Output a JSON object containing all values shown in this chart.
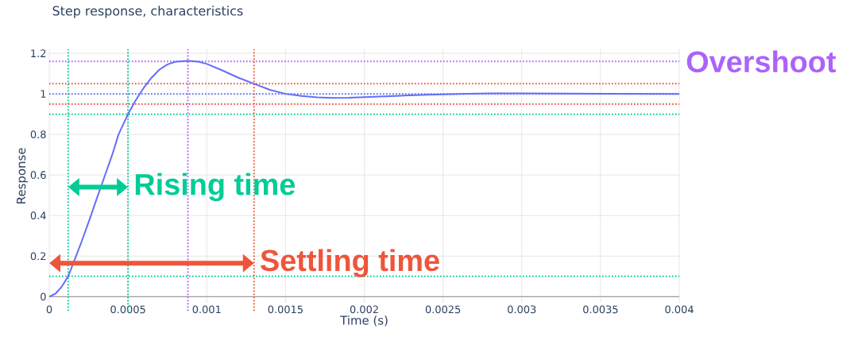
{
  "chart_data": {
    "type": "line",
    "title": "Step response, characteristics",
    "xlabel": "Time (s)",
    "ylabel": "Response",
    "xlim": [
      0,
      0.004
    ],
    "ylim": [
      -0.03,
      1.22
    ],
    "xticks": [
      0,
      0.0005,
      0.001,
      0.0015,
      0.002,
      0.0025,
      0.003,
      0.0035,
      0.004
    ],
    "yticks": [
      0,
      0.2,
      0.4,
      0.6,
      0.8,
      1,
      1.2
    ],
    "grid": true,
    "marker": "none",
    "line_style": "solid",
    "series": [
      {
        "color": "#636efa",
        "x": [
          0,
          4e-05,
          8e-05,
          0.00012,
          0.00016,
          0.0002,
          0.00026,
          0.0003,
          0.00035,
          0.0004,
          0.00044,
          0.0005,
          0.00055,
          0.0006,
          0.00065,
          0.0007,
          0.00075,
          0.0008,
          0.00088,
          0.00095,
          0.001,
          0.0011,
          0.0012,
          0.0013,
          0.0014,
          0.0015,
          0.0016,
          0.0017,
          0.0018,
          0.0019,
          0.002,
          0.0022,
          0.0024,
          0.0026,
          0.0028,
          0.003,
          0.0035,
          0.004
        ],
        "values": [
          0,
          0.015,
          0.05,
          0.1,
          0.18,
          0.26,
          0.39,
          0.48,
          0.59,
          0.7,
          0.8,
          0.9,
          0.97,
          1.03,
          1.08,
          1.12,
          1.145,
          1.158,
          1.163,
          1.158,
          1.148,
          1.115,
          1.08,
          1.05,
          1.02,
          1.0,
          0.99,
          0.983,
          0.98,
          0.981,
          0.984,
          0.99,
          0.996,
          1.0,
          1.002,
          1.002,
          1.001,
          1.0
        ]
      }
    ],
    "ref_lines": [
      {
        "axis": "x",
        "value": 0.00012,
        "color": "#00cc96",
        "line_style": "dotted"
      },
      {
        "axis": "x",
        "value": 0.0005,
        "color": "#00cc96",
        "line_style": "dotted"
      },
      {
        "axis": "x",
        "value": 0.00088,
        "color": "#ab63fa",
        "line_style": "dotted"
      },
      {
        "axis": "x",
        "value": 0.0013,
        "color": "#ef553b",
        "line_style": "dotted"
      },
      {
        "axis": "y",
        "value": 1.16,
        "color": "#ab63fa",
        "line_style": "dotted"
      },
      {
        "axis": "y",
        "value": 1.05,
        "color": "#ef553b",
        "line_style": "dotted"
      },
      {
        "axis": "y",
        "value": 1,
        "color": "#636efa",
        "line_style": "dotted"
      },
      {
        "axis": "y",
        "value": 0.95,
        "color": "#ef553b",
        "line_style": "dotted"
      },
      {
        "axis": "y",
        "value": 0.9,
        "color": "#00cc96",
        "line_style": "dotted"
      },
      {
        "axis": "y",
        "value": 0.1,
        "color": "#00cc96",
        "line_style": "dotted"
      }
    ],
    "annotations": [
      {
        "text": "Overshoot",
        "x": 0.004,
        "y": 1.16
      },
      {
        "text": "Rising time",
        "x": 0.0005,
        "y": 0.54
      },
      {
        "text": "Settling time",
        "x": 0.0013,
        "y": 0.165
      }
    ]
  }
}
